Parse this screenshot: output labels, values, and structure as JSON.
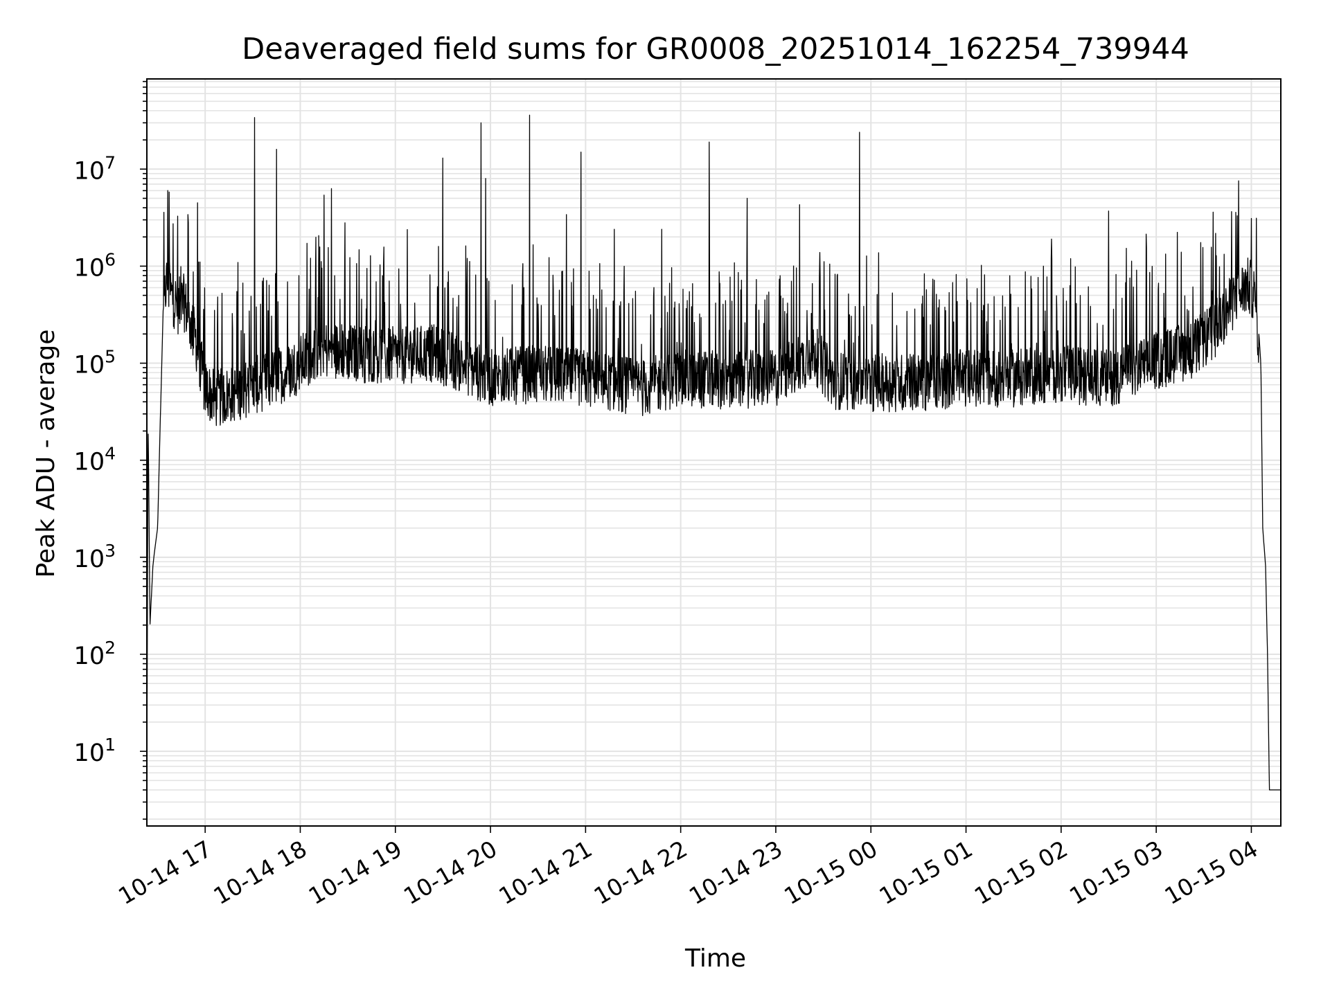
{
  "chart_data": {
    "type": "line",
    "title": "Deaveraged field sums for GR0008_20251014_162254_739944",
    "xlabel": "Time",
    "ylabel": "Peak ADU - average",
    "yscale": "log",
    "ylim": [
      1.7,
      85000000
    ],
    "xlim_hours": [
      16.387,
      28.31
    ],
    "grid": true,
    "line_color": "#000000",
    "grid_color": "#e3e3e3",
    "x_ticks": [
      {
        "label": "10-14 17",
        "hour": 17
      },
      {
        "label": "10-14 18",
        "hour": 18
      },
      {
        "label": "10-14 19",
        "hour": 19
      },
      {
        "label": "10-14 20",
        "hour": 20
      },
      {
        "label": "10-14 21",
        "hour": 21
      },
      {
        "label": "10-14 22",
        "hour": 22
      },
      {
        "label": "10-14 23",
        "hour": 23
      },
      {
        "label": "10-15 00",
        "hour": 24
      },
      {
        "label": "10-15 01",
        "hour": 25
      },
      {
        "label": "10-15 02",
        "hour": 26
      },
      {
        "label": "10-15 03",
        "hour": 27
      },
      {
        "label": "10-15 04",
        "hour": 28
      }
    ],
    "y_ticks": [
      {
        "base": "10",
        "exp": "1",
        "value": 10
      },
      {
        "base": "10",
        "exp": "2",
        "value": 100
      },
      {
        "base": "10",
        "exp": "3",
        "value": 1000
      },
      {
        "base": "10",
        "exp": "4",
        "value": 10000
      },
      {
        "base": "10",
        "exp": "5",
        "value": 100000
      },
      {
        "base": "10",
        "exp": "6",
        "value": 1000000
      },
      {
        "base": "10",
        "exp": "7",
        "value": 10000000
      }
    ],
    "series": [
      {
        "name": "Peak ADU - average",
        "shape": [
          [
            16.387,
            4
          ],
          [
            16.4,
            30000
          ],
          [
            16.42,
            200
          ],
          [
            16.45,
            800
          ],
          [
            16.47,
            1200
          ],
          [
            16.5,
            2000
          ],
          [
            16.53,
            30000
          ],
          [
            16.56,
            400000
          ],
          [
            16.58,
            800000
          ],
          [
            16.6,
            1000000
          ],
          [
            16.65,
            700000
          ],
          [
            16.72,
            550000
          ],
          [
            16.78,
            600000
          ],
          [
            16.83,
            400000
          ],
          [
            16.9,
            250000
          ],
          [
            17.0,
            80000
          ],
          [
            17.1,
            60000
          ],
          [
            17.3,
            70000
          ],
          [
            17.6,
            90000
          ],
          [
            17.9,
            120000
          ],
          [
            18.2,
            200000
          ],
          [
            18.6,
            180000
          ],
          [
            19.0,
            170000
          ],
          [
            19.4,
            180000
          ],
          [
            19.7,
            140000
          ],
          [
            20.0,
            100000
          ],
          [
            20.5,
            110000
          ],
          [
            21.0,
            100000
          ],
          [
            21.6,
            80000
          ],
          [
            22.0,
            100000
          ],
          [
            22.5,
            95000
          ],
          [
            23.0,
            100000
          ],
          [
            23.4,
            180000
          ],
          [
            23.6,
            95000
          ],
          [
            24.0,
            90000
          ],
          [
            24.5,
            90000
          ],
          [
            25.0,
            100000
          ],
          [
            25.5,
            100000
          ],
          [
            26.0,
            110000
          ],
          [
            26.5,
            100000
          ],
          [
            27.0,
            150000
          ],
          [
            27.4,
            200000
          ],
          [
            27.6,
            300000
          ],
          [
            27.8,
            600000
          ],
          [
            27.95,
            900000
          ],
          [
            28.02,
            800000
          ],
          [
            28.06,
            400000
          ],
          [
            28.1,
            100000
          ],
          [
            28.12,
            2000
          ],
          [
            28.15,
            800
          ],
          [
            28.17,
            100
          ],
          [
            28.19,
            4
          ],
          [
            28.31,
            4
          ]
        ],
        "spikes": [
          [
            16.62,
            5800000
          ],
          [
            16.82,
            3400000
          ],
          [
            16.92,
            4500000
          ],
          [
            17.52,
            34000000
          ],
          [
            17.75,
            16000000
          ],
          [
            18.25,
            5400000
          ],
          [
            18.33,
            6300000
          ],
          [
            19.5,
            13000000
          ],
          [
            19.9,
            30000000
          ],
          [
            19.95,
            8000000
          ],
          [
            20.41,
            36000000
          ],
          [
            20.8,
            3400000
          ],
          [
            20.95,
            15000000
          ],
          [
            21.3,
            2400000
          ],
          [
            21.8,
            2400000
          ],
          [
            22.3,
            19000000
          ],
          [
            22.7,
            5000000
          ],
          [
            23.25,
            4300000
          ],
          [
            23.88,
            24000000
          ],
          [
            25.9,
            1900000
          ],
          [
            26.5,
            3700000
          ],
          [
            27.6,
            3600000
          ],
          [
            27.85,
            3300000
          ],
          [
            28.0,
            3100000
          ]
        ],
        "noise_band": [
          0.35,
          1.4
        ]
      }
    ]
  }
}
